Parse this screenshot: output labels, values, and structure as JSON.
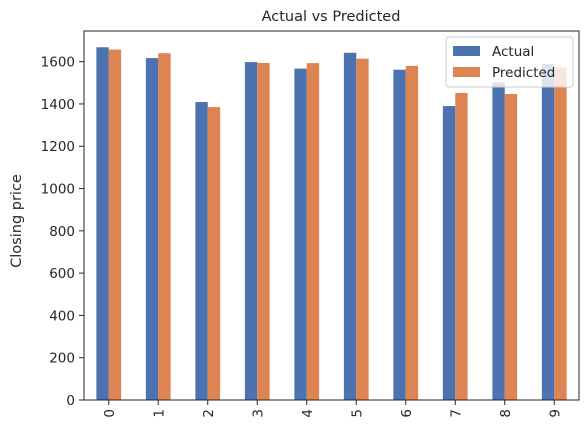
{
  "chart_data": {
    "type": "bar",
    "title": "Actual vs Predicted",
    "xlabel": "",
    "ylabel": "Closing price",
    "categories": [
      "0",
      "1",
      "2",
      "3",
      "4",
      "5",
      "6",
      "7",
      "8",
      "9"
    ],
    "series": [
      {
        "name": "Actual",
        "color": "#4c72b0",
        "values": [
          1668,
          1617,
          1409,
          1598,
          1567,
          1642,
          1562,
          1390,
          1502,
          1589
        ]
      },
      {
        "name": "Predicted",
        "color": "#dd8452",
        "values": [
          1657,
          1640,
          1385,
          1594,
          1593,
          1614,
          1580,
          1452,
          1447,
          1572
        ]
      }
    ],
    "ylim": [
      0,
      1745
    ],
    "yticks": [
      0,
      200,
      400,
      600,
      800,
      1000,
      1200,
      1400,
      1600
    ],
    "grid": false,
    "legend_position": "top-right"
  }
}
